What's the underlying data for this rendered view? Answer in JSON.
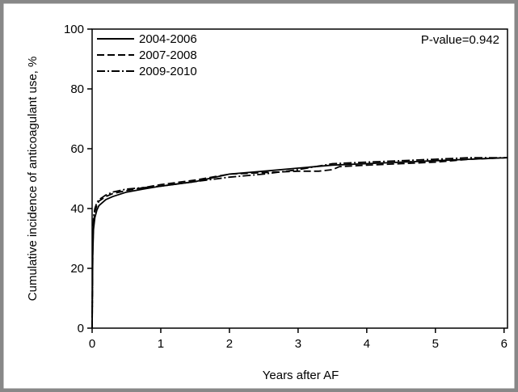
{
  "chart_data": {
    "type": "line",
    "xlabel": "Years after AF",
    "ylabel": "Cumulative incidence of anticoagulant use, %",
    "xlim": [
      0,
      6.05
    ],
    "ylim": [
      0,
      100
    ],
    "xticks": [
      0,
      1,
      2,
      3,
      4,
      5,
      6
    ],
    "yticks": [
      0,
      20,
      40,
      60,
      80,
      100
    ],
    "grid": false,
    "legend_position": "top-left",
    "annotation": "P-value=0.942",
    "colors": {
      "frame": "#888888",
      "line": "#000000",
      "axis": "#000000"
    },
    "series": [
      {
        "name": "2004-2006",
        "dash": "solid",
        "x": [
          0,
          0.01,
          0.02,
          0.04,
          0.07,
          0.1,
          0.2,
          0.3,
          0.5,
          0.75,
          1.0,
          1.5,
          2.0,
          2.5,
          3.0,
          3.5,
          4.0,
          4.5,
          5.0,
          5.5,
          6.05
        ],
        "y": [
          0,
          25,
          33,
          37,
          39.5,
          41,
          43,
          44,
          45.5,
          46.5,
          47.5,
          49,
          51.5,
          52.5,
          53.5,
          54.5,
          55,
          55.5,
          56,
          56.5,
          57
        ]
      },
      {
        "name": "2007-2008",
        "dash": "dashed",
        "x": [
          0,
          0.01,
          0.02,
          0.04,
          0.07,
          0.1,
          0.2,
          0.3,
          0.5,
          0.75,
          1.0,
          1.5,
          2.0,
          2.5,
          3.0,
          3.3,
          3.5,
          3.6,
          4.0,
          4.5,
          5.0,
          5.5,
          6.05
        ],
        "y": [
          0,
          27,
          35,
          39,
          41,
          42.5,
          44,
          45,
          46,
          47,
          48,
          49.5,
          51.5,
          52,
          52.5,
          52.5,
          53,
          54,
          54.5,
          55,
          55.5,
          56.5,
          57
        ]
      },
      {
        "name": "2009-2010",
        "dash": "dashdot",
        "x": [
          0,
          0.01,
          0.02,
          0.04,
          0.07,
          0.1,
          0.2,
          0.3,
          0.5,
          0.75,
          1.0,
          1.5,
          2.0,
          2.5,
          3.0,
          3.5,
          4.0,
          4.5,
          5.0,
          5.5,
          6.05
        ],
        "y": [
          0,
          30,
          37,
          40,
          42,
          43,
          44.5,
          45.5,
          46.5,
          47,
          47.5,
          49,
          50.5,
          51.5,
          53,
          55,
          55.5,
          56,
          56.5,
          57,
          57
        ]
      }
    ]
  }
}
